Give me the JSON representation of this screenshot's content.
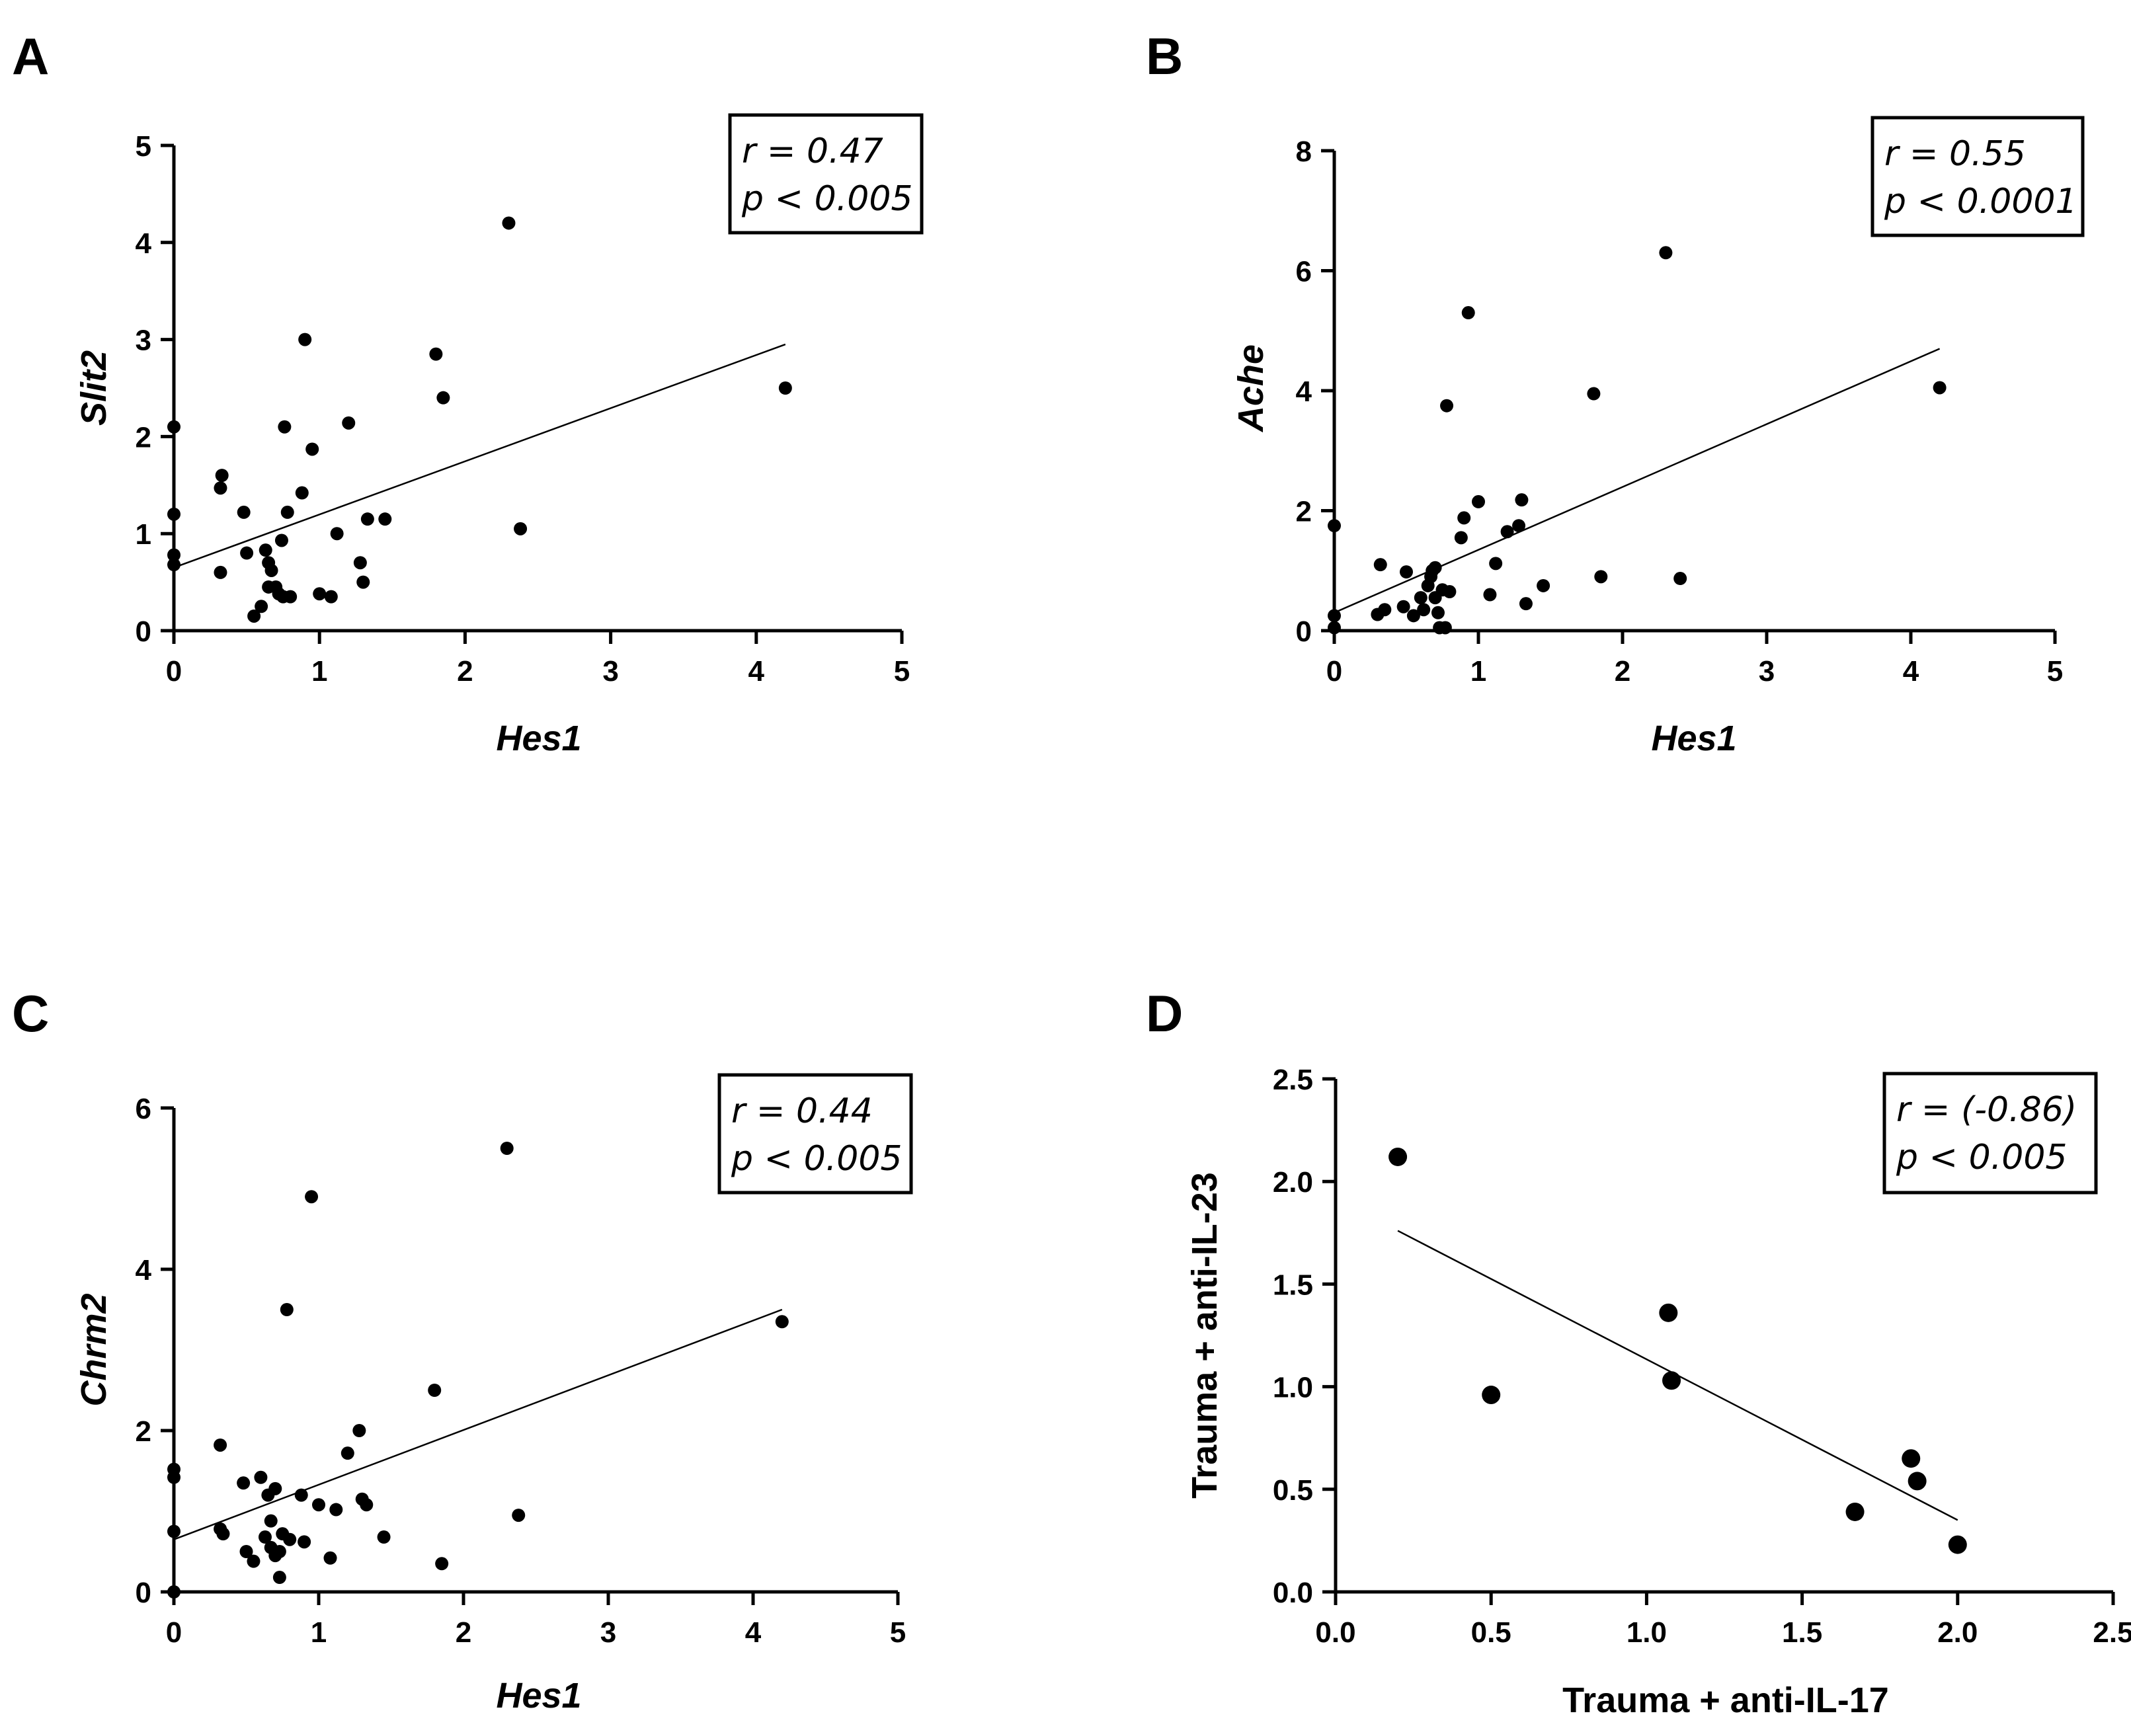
{
  "chart_data": [
    {
      "panel": "A",
      "type": "scatter",
      "xlabel": "Hes1",
      "ylabel": "Slit2",
      "label_italic": true,
      "xlim": [
        0,
        5
      ],
      "ylim": [
        0,
        5
      ],
      "xticks": [
        0,
        1,
        2,
        3,
        4,
        5
      ],
      "yticks": [
        0,
        1,
        2,
        3,
        4,
        5
      ],
      "tick_labels_x": [
        "0",
        "1",
        "2",
        "3",
        "4",
        "5"
      ],
      "tick_labels_y": [
        "0",
        "1",
        "2",
        "3",
        "4",
        "5"
      ],
      "stats": [
        "r = 0.47",
        "p < 0.005"
      ],
      "fit": {
        "x": [
          0,
          4.2
        ],
        "y": [
          0.65,
          2.95
        ]
      },
      "marker": "small",
      "points": [
        [
          0.0,
          2.1
        ],
        [
          0.0,
          1.2
        ],
        [
          0.0,
          0.78
        ],
        [
          0.0,
          0.68
        ],
        [
          0.32,
          1.47
        ],
        [
          0.33,
          1.6
        ],
        [
          0.32,
          0.6
        ],
        [
          0.48,
          1.22
        ],
        [
          0.5,
          0.8
        ],
        [
          0.55,
          0.15
        ],
        [
          0.6,
          0.25
        ],
        [
          0.63,
          0.83
        ],
        [
          0.65,
          0.7
        ],
        [
          0.67,
          0.62
        ],
        [
          0.65,
          0.45
        ],
        [
          0.7,
          0.45
        ],
        [
          0.72,
          0.38
        ],
        [
          0.75,
          0.35
        ],
        [
          0.74,
          0.93
        ],
        [
          0.76,
          2.1
        ],
        [
          0.78,
          1.22
        ],
        [
          0.8,
          0.35
        ],
        [
          0.88,
          1.42
        ],
        [
          0.9,
          3.0
        ],
        [
          0.95,
          1.87
        ],
        [
          1.0,
          0.38
        ],
        [
          1.08,
          0.35
        ],
        [
          1.12,
          1.0
        ],
        [
          1.2,
          2.14
        ],
        [
          1.28,
          0.7
        ],
        [
          1.3,
          0.5
        ],
        [
          1.33,
          1.15
        ],
        [
          1.45,
          1.15
        ],
        [
          1.8,
          2.85
        ],
        [
          1.85,
          2.4
        ],
        [
          2.3,
          4.2
        ],
        [
          2.38,
          1.05
        ],
        [
          4.2,
          2.5
        ]
      ]
    },
    {
      "panel": "B",
      "type": "scatter",
      "xlabel": "Hes1",
      "ylabel": "Ache",
      "label_italic": true,
      "xlim": [
        0,
        5
      ],
      "ylim": [
        0,
        8
      ],
      "xticks": [
        0,
        1,
        2,
        3,
        4,
        5
      ],
      "yticks": [
        0,
        2,
        4,
        6,
        8
      ],
      "tick_labels_x": [
        "0",
        "1",
        "2",
        "3",
        "4",
        "5"
      ],
      "tick_labels_y": [
        "0",
        "2",
        "4",
        "6",
        "8"
      ],
      "stats": [
        "r = 0.55",
        "p < 0.0001"
      ],
      "fit": {
        "x": [
          0,
          4.2
        ],
        "y": [
          0.3,
          4.7
        ]
      },
      "marker": "small",
      "points": [
        [
          0.0,
          1.75
        ],
        [
          0.0,
          0.25
        ],
        [
          0.0,
          0.05
        ],
        [
          0.3,
          0.27
        ],
        [
          0.32,
          1.1
        ],
        [
          0.35,
          0.35
        ],
        [
          0.48,
          0.4
        ],
        [
          0.5,
          0.98
        ],
        [
          0.55,
          0.25
        ],
        [
          0.6,
          0.55
        ],
        [
          0.62,
          0.35
        ],
        [
          0.65,
          0.75
        ],
        [
          0.67,
          0.9
        ],
        [
          0.68,
          1.0
        ],
        [
          0.7,
          1.05
        ],
        [
          0.7,
          0.55
        ],
        [
          0.72,
          0.3
        ],
        [
          0.73,
          0.05
        ],
        [
          0.75,
          0.68
        ],
        [
          0.77,
          0.05
        ],
        [
          0.78,
          3.75
        ],
        [
          0.8,
          0.65
        ],
        [
          0.88,
          1.55
        ],
        [
          0.9,
          1.88
        ],
        [
          0.93,
          5.3
        ],
        [
          1.0,
          2.15
        ],
        [
          1.08,
          0.6
        ],
        [
          1.12,
          1.12
        ],
        [
          1.2,
          1.65
        ],
        [
          1.28,
          1.75
        ],
        [
          1.3,
          2.18
        ],
        [
          1.33,
          0.45
        ],
        [
          1.45,
          0.75
        ],
        [
          1.8,
          3.95
        ],
        [
          1.85,
          0.9
        ],
        [
          2.3,
          6.3
        ],
        [
          2.4,
          0.87
        ],
        [
          4.2,
          4.05
        ]
      ]
    },
    {
      "panel": "C",
      "type": "scatter",
      "xlabel": "Hes1",
      "ylabel": "Chrm2",
      "label_italic": true,
      "xlim": [
        0,
        5
      ],
      "ylim": [
        0,
        6
      ],
      "xticks": [
        0,
        1,
        2,
        3,
        4,
        5
      ],
      "yticks": [
        0,
        2,
        4,
        6
      ],
      "tick_labels_x": [
        "0",
        "1",
        "2",
        "3",
        "4",
        "5"
      ],
      "tick_labels_y": [
        "0",
        "2",
        "4",
        "6"
      ],
      "stats": [
        "r = 0.44",
        "p < 0.005"
      ],
      "fit": {
        "x": [
          0,
          4.2
        ],
        "y": [
          0.65,
          3.5
        ]
      },
      "marker": "small",
      "points": [
        [
          0.0,
          1.52
        ],
        [
          0.0,
          1.42
        ],
        [
          0.0,
          0.75
        ],
        [
          0.0,
          0.0
        ],
        [
          0.32,
          1.82
        ],
        [
          0.32,
          0.78
        ],
        [
          0.34,
          0.72
        ],
        [
          0.48,
          1.35
        ],
        [
          0.5,
          0.5
        ],
        [
          0.55,
          0.38
        ],
        [
          0.6,
          1.42
        ],
        [
          0.63,
          0.68
        ],
        [
          0.65,
          1.2
        ],
        [
          0.67,
          0.88
        ],
        [
          0.7,
          1.28
        ],
        [
          0.67,
          0.55
        ],
        [
          0.7,
          0.45
        ],
        [
          0.73,
          0.5
        ],
        [
          0.73,
          0.18
        ],
        [
          0.75,
          0.72
        ],
        [
          0.78,
          3.5
        ],
        [
          0.8,
          0.65
        ],
        [
          0.88,
          1.2
        ],
        [
          0.9,
          0.62
        ],
        [
          0.95,
          4.9
        ],
        [
          1.0,
          1.08
        ],
        [
          1.08,
          0.42
        ],
        [
          1.12,
          1.02
        ],
        [
          1.2,
          1.72
        ],
        [
          1.28,
          2.0
        ],
        [
          1.3,
          1.15
        ],
        [
          1.33,
          1.08
        ],
        [
          1.45,
          0.68
        ],
        [
          1.8,
          2.5
        ],
        [
          1.85,
          0.35
        ],
        [
          2.3,
          5.5
        ],
        [
          2.38,
          0.95
        ],
        [
          4.2,
          3.35
        ]
      ]
    },
    {
      "panel": "D",
      "type": "scatter",
      "xlabel": "Trauma + anti-IL-17",
      "ylabel": "Trauma + anti-IL-23",
      "label_italic": false,
      "xlim": [
        0,
        2.5
      ],
      "ylim": [
        0,
        2.5
      ],
      "xticks": [
        0,
        0.5,
        1.0,
        1.5,
        2.0,
        2.5
      ],
      "yticks": [
        0,
        0.5,
        1.0,
        1.5,
        2.0,
        2.5
      ],
      "tick_labels_x": [
        "0.0",
        "0.5",
        "1.0",
        "1.5",
        "2.0",
        "2.5"
      ],
      "tick_labels_y": [
        "0.0",
        "0.5",
        "1.0",
        "1.5",
        "2.0",
        "2.5"
      ],
      "stats": [
        "r = (-0.86)",
        "p < 0.005"
      ],
      "fit": {
        "x": [
          0.2,
          2.0
        ],
        "y": [
          1.76,
          0.35
        ]
      },
      "marker": "large",
      "points": [
        [
          0.2,
          2.12
        ],
        [
          0.5,
          0.96
        ],
        [
          1.07,
          1.36
        ],
        [
          1.08,
          1.03
        ],
        [
          1.67,
          0.39
        ],
        [
          1.85,
          0.65
        ],
        [
          1.87,
          0.54
        ],
        [
          2.0,
          0.23
        ]
      ]
    }
  ]
}
